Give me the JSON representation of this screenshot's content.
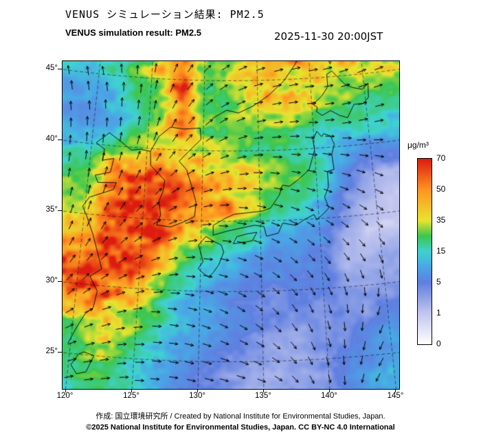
{
  "header": {
    "title_ja": "VENUS シミュレーション結果: PM2.5",
    "title_en": "VENUS simulation result: PM2.5",
    "datetime": "2025-11-30 20:00JST"
  },
  "map": {
    "lat_tick_labels": [
      "45°",
      "40°",
      "35°",
      "30°",
      "25°"
    ],
    "lat_tick_values": [
      45,
      40,
      35,
      30,
      25
    ],
    "lon_tick_labels": [
      "120°",
      "125°",
      "130°",
      "135°",
      "140°",
      "145°"
    ],
    "lon_tick_values": [
      120,
      125,
      130,
      135,
      140,
      145
    ]
  },
  "colorbar": {
    "unit": "μg/m³",
    "tick_labels": [
      "70",
      "50",
      "35",
      "15",
      "5",
      "1",
      "0"
    ]
  },
  "footer": {
    "credit": "作成: 国立環境研究所 / Created by National Institute for Environmental Studies, Japan.",
    "license": "©2025 National Institute for Environmental Studies, Japan. CC BY-NC 4.0 International"
  },
  "chart_data": {
    "type": "heatmap",
    "title": "VENUS simulation result: PM2.5",
    "unit": "μg/m³",
    "datetime": "2025-11-30 20:00JST",
    "lon_range": [
      119.6,
      146.4
    ],
    "lat_range": [
      23.6,
      46.4
    ],
    "levels": [
      0,
      1,
      5,
      15,
      35,
      50,
      70
    ],
    "color_scale": {
      "values": [
        0,
        1,
        5,
        10,
        15,
        25,
        35,
        50,
        70
      ],
      "colors": [
        "#ffffff",
        "#c2c6ee",
        "#5f7fe0",
        "#4aa6e6",
        "#3fd2d2",
        "#3cc64e",
        "#e8e430",
        "#ff9420",
        "#dc1c10"
      ]
    },
    "pm25_grid": {
      "lons": [
        120,
        122,
        124,
        126,
        128,
        130,
        132,
        134,
        136,
        138,
        140,
        142,
        144,
        146
      ],
      "lats": [
        46,
        44,
        42,
        40,
        38,
        36,
        34,
        32,
        30,
        28,
        26,
        24
      ],
      "values_ugm3": [
        [
          18,
          22,
          28,
          45,
          60,
          30,
          35,
          45,
          50,
          48,
          45,
          40,
          42,
          38
        ],
        [
          10,
          15,
          25,
          40,
          65,
          28,
          30,
          38,
          45,
          42,
          38,
          30,
          30,
          28
        ],
        [
          8,
          12,
          22,
          35,
          55,
          30,
          28,
          30,
          32,
          30,
          25,
          22,
          20,
          18
        ],
        [
          15,
          25,
          35,
          45,
          40,
          35,
          30,
          25,
          22,
          18,
          15,
          12,
          10,
          10
        ],
        [
          25,
          55,
          68,
          70,
          60,
          50,
          45,
          42,
          40,
          35,
          25,
          8,
          3,
          2
        ],
        [
          35,
          68,
          72,
          72,
          65,
          55,
          50,
          45,
          26,
          20,
          12,
          5,
          2,
          1
        ],
        [
          50,
          72,
          72,
          68,
          55,
          35,
          25,
          18,
          12,
          10,
          8,
          3,
          1,
          1
        ],
        [
          60,
          72,
          70,
          55,
          30,
          18,
          12,
          10,
          8,
          7,
          6,
          2,
          2,
          3
        ],
        [
          65,
          68,
          55,
          35,
          18,
          10,
          8,
          6,
          5,
          5,
          5,
          3,
          3,
          3
        ],
        [
          40,
          48,
          40,
          25,
          14,
          10,
          8,
          6,
          4,
          4,
          4,
          4,
          5,
          6
        ],
        [
          28,
          35,
          28,
          18,
          11,
          8,
          6,
          4,
          3,
          3,
          4,
          5,
          8,
          10
        ],
        [
          22,
          28,
          22,
          12,
          7,
          5,
          4,
          3,
          3,
          3,
          4,
          8,
          10,
          12
        ]
      ]
    },
    "wind_grid": {
      "lons": [
        120,
        125,
        130,
        135,
        140,
        145
      ],
      "lats": [
        46,
        41.6,
        37.2,
        32.8,
        28.4,
        24
      ],
      "u": [
        [
          -0.2,
          0.1,
          0.7,
          1.0,
          1.0,
          0.9
        ],
        [
          0.0,
          0.2,
          0.8,
          1.0,
          1.0,
          1.0
        ],
        [
          0.2,
          0.6,
          1.0,
          1.0,
          1.0,
          0.9
        ],
        [
          0.5,
          0.9,
          1.0,
          0.9,
          0.7,
          0.6
        ],
        [
          0.8,
          1.0,
          0.9,
          0.7,
          0.3,
          -0.3
        ],
        [
          1.0,
          1.0,
          0.9,
          0.8,
          0.2,
          -0.5
        ]
      ],
      "v": [
        [
          1.0,
          1.0,
          0.7,
          0.3,
          0.2,
          0.4
        ],
        [
          1.0,
          1.0,
          0.7,
          0.2,
          0.0,
          0.2
        ],
        [
          1.0,
          0.8,
          0.3,
          -0.1,
          -0.3,
          -0.4
        ],
        [
          0.9,
          0.5,
          0.0,
          -0.4,
          -0.7,
          -0.8
        ],
        [
          0.5,
          0.1,
          -0.3,
          -0.6,
          -0.9,
          -0.8
        ],
        [
          0.2,
          0.0,
          -0.2,
          -0.3,
          -0.8,
          -0.6
        ]
      ]
    },
    "coastlines": [
      [
        [
          131.0,
          34.0
        ],
        [
          132.2,
          34.3
        ],
        [
          133.3,
          34.5
        ],
        [
          134.5,
          34.7
        ],
        [
          135.3,
          34.6
        ],
        [
          135.5,
          33.9
        ],
        [
          136.5,
          34.1
        ],
        [
          136.9,
          34.8
        ],
        [
          138.0,
          34.6
        ],
        [
          138.8,
          35.0
        ],
        [
          139.6,
          35.3
        ],
        [
          139.8,
          34.9
        ],
        [
          140.4,
          35.3
        ],
        [
          140.9,
          35.7
        ],
        [
          140.6,
          36.5
        ],
        [
          141.0,
          37.2
        ],
        [
          141.0,
          38.3
        ],
        [
          141.6,
          38.4
        ],
        [
          141.5,
          39.5
        ],
        [
          141.8,
          40.2
        ],
        [
          141.5,
          40.8
        ],
        [
          140.9,
          41.0
        ],
        [
          140.7,
          40.8
        ],
        [
          140.3,
          41.2
        ],
        [
          139.9,
          40.6
        ],
        [
          140.0,
          39.9
        ],
        [
          139.7,
          39.2
        ],
        [
          139.4,
          38.5
        ],
        [
          138.5,
          37.9
        ],
        [
          137.6,
          37.4
        ],
        [
          137.0,
          37.5
        ],
        [
          136.7,
          36.8
        ],
        [
          135.9,
          35.9
        ],
        [
          135.2,
          35.7
        ],
        [
          134.0,
          35.6
        ],
        [
          132.8,
          35.5
        ],
        [
          132.0,
          35.2
        ],
        [
          131.0,
          34.7
        ],
        [
          131.0,
          34.0
        ]
      ],
      [
        [
          140.4,
          42.6
        ],
        [
          140.9,
          42.3
        ],
        [
          141.7,
          42.6
        ],
        [
          142.5,
          42.2
        ],
        [
          143.2,
          42.0
        ],
        [
          143.9,
          42.9
        ],
        [
          144.8,
          42.9
        ],
        [
          145.3,
          43.3
        ],
        [
          145.4,
          44.3
        ],
        [
          144.8,
          43.9
        ],
        [
          143.9,
          44.1
        ],
        [
          143.2,
          44.4
        ],
        [
          142.1,
          45.4
        ],
        [
          141.6,
          45.2
        ],
        [
          141.6,
          44.3
        ],
        [
          141.0,
          43.7
        ],
        [
          140.4,
          43.3
        ],
        [
          140.0,
          43.2
        ],
        [
          140.5,
          42.9
        ],
        [
          140.4,
          42.6
        ]
      ],
      [
        [
          130.2,
          31.3
        ],
        [
          130.7,
          31.0
        ],
        [
          131.1,
          31.4
        ],
        [
          131.5,
          31.9
        ],
        [
          131.9,
          32.8
        ],
        [
          131.7,
          33.3
        ],
        [
          131.0,
          33.6
        ],
        [
          130.4,
          33.9
        ],
        [
          129.8,
          33.3
        ],
        [
          130.0,
          32.7
        ],
        [
          130.2,
          32.1
        ],
        [
          129.8,
          31.6
        ],
        [
          130.2,
          31.3
        ]
      ],
      [
        [
          132.7,
          33.4
        ],
        [
          133.6,
          33.5
        ],
        [
          134.3,
          33.6
        ],
        [
          134.7,
          34.2
        ],
        [
          133.9,
          34.1
        ],
        [
          133.0,
          33.9
        ],
        [
          132.7,
          33.4
        ]
      ],
      [
        [
          126.2,
          34.6
        ],
        [
          127.4,
          34.5
        ],
        [
          128.5,
          34.9
        ],
        [
          129.4,
          35.3
        ],
        [
          129.5,
          36.3
        ],
        [
          129.1,
          37.4
        ],
        [
          128.6,
          38.6
        ],
        [
          127.9,
          39.2
        ],
        [
          128.7,
          39.9
        ],
        [
          129.8,
          40.8
        ],
        [
          129.7,
          41.6
        ],
        [
          128.2,
          41.5
        ],
        [
          127.0,
          41.6
        ],
        [
          126.0,
          40.9
        ],
        [
          125.3,
          39.8
        ],
        [
          125.4,
          38.8
        ],
        [
          126.7,
          37.8
        ],
        [
          126.6,
          37.0
        ],
        [
          126.3,
          36.3
        ],
        [
          126.5,
          35.3
        ],
        [
          126.2,
          34.6
        ]
      ],
      [
        [
          119.8,
          25.7
        ],
        [
          120.3,
          26.8
        ],
        [
          120.9,
          27.9
        ],
        [
          121.5,
          28.4
        ],
        [
          121.7,
          29.6
        ],
        [
          121.0,
          30.6
        ],
        [
          121.9,
          31.2
        ],
        [
          121.5,
          32.2
        ],
        [
          120.9,
          33.6
        ],
        [
          120.2,
          34.9
        ],
        [
          119.8,
          35.5
        ],
        [
          120.3,
          36.2
        ],
        [
          122.3,
          36.9
        ],
        [
          122.5,
          37.4
        ],
        [
          120.9,
          37.3
        ],
        [
          120.6,
          37.8
        ],
        [
          121.9,
          38.1
        ],
        [
          122.1,
          39.1
        ],
        [
          121.1,
          38.9
        ],
        [
          121.2,
          39.7
        ],
        [
          120.4,
          40.1
        ],
        [
          121.5,
          40.9
        ],
        [
          122.3,
          40.5
        ],
        [
          123.6,
          39.8
        ],
        [
          124.4,
          39.9
        ],
        [
          125.3,
          39.8
        ]
      ],
      [
        [
          130.8,
          42.3
        ],
        [
          132.1,
          42.9
        ],
        [
          133.2,
          42.7
        ],
        [
          134.6,
          43.2
        ],
        [
          136.0,
          43.9
        ],
        [
          137.5,
          44.9
        ],
        [
          138.6,
          46.0
        ],
        [
          139.0,
          46.5
        ]
      ],
      [
        [
          141.7,
          46.5
        ],
        [
          142.0,
          45.9
        ],
        [
          142.3,
          46.5
        ]
      ],
      [
        [
          121.1,
          25.2
        ],
        [
          121.9,
          25.0
        ],
        [
          121.4,
          23.8
        ],
        [
          120.7,
          23.6
        ],
        [
          120.2,
          24.2
        ],
        [
          120.7,
          25.0
        ],
        [
          121.1,
          25.2
        ]
      ]
    ]
  }
}
